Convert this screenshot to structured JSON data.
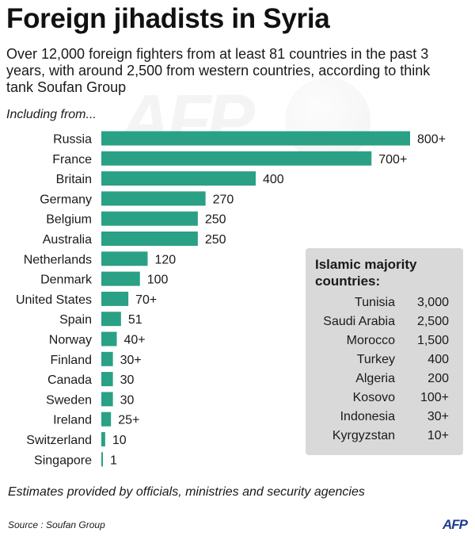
{
  "title": "Foreign jihadists in Syria",
  "subtitle": "Over 12,000 foreign fighters from at least 81 countries in the past 3 years, with around 2,500 from western countries, according to think tank Soufan Group",
  "including_label": "Including from...",
  "watermark_text": "AFP",
  "colors": {
    "bar": "#2aa085",
    "box": "#d9d9d9",
    "logo": "#1f3d8a"
  },
  "chart_data": {
    "type": "bar",
    "orientation": "horizontal",
    "title": "Foreign jihadists in Syria",
    "xlabel": "",
    "ylabel": "",
    "xlim": [
      0,
      800
    ],
    "categories": [
      "Russia",
      "France",
      "Britain",
      "Germany",
      "Belgium",
      "Australia",
      "Netherlands",
      "Denmark",
      "United States",
      "Spain",
      "Norway",
      "Finland",
      "Canada",
      "Sweden",
      "Ireland",
      "Switzerland",
      "Singapore"
    ],
    "values": [
      800,
      700,
      400,
      270,
      250,
      250,
      120,
      100,
      70,
      51,
      40,
      30,
      30,
      30,
      25,
      10,
      1
    ],
    "value_labels": [
      "800+",
      "700+",
      "400",
      "270",
      "250",
      "250",
      "120",
      "100",
      "70+",
      "51",
      "40+",
      "30+",
      "30",
      "30",
      "25+",
      "10",
      "1"
    ]
  },
  "islamic_box": {
    "title": "Islamic majority countries:",
    "rows": [
      {
        "country": "Tunisia",
        "value": "3,000"
      },
      {
        "country": "Saudi Arabia",
        "value": "2,500"
      },
      {
        "country": "Morocco",
        "value": "1,500"
      },
      {
        "country": "Turkey",
        "value": "400"
      },
      {
        "country": "Algeria",
        "value": "200"
      },
      {
        "country": "Kosovo",
        "value": "100+"
      },
      {
        "country": "Indonesia",
        "value": "30+"
      },
      {
        "country": "Kyrgyzstan",
        "value": "10+"
      }
    ]
  },
  "footnote": "Estimates provided by officials, ministries and security agencies",
  "source": "Source : Soufan Group",
  "logo": "AFP"
}
